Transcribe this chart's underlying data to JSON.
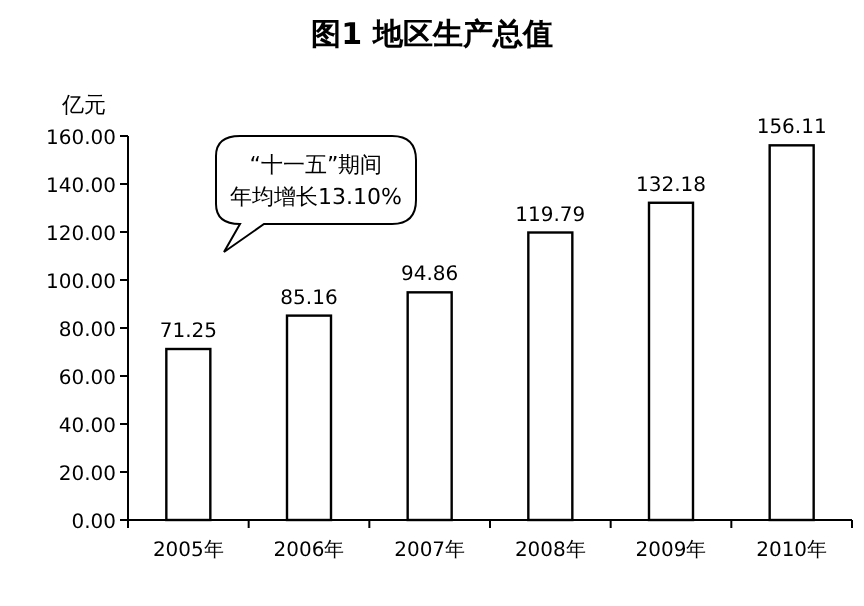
{
  "chart_data": {
    "type": "bar",
    "title": "图1  地区生产总值",
    "ylabel": "亿元",
    "categories": [
      "2005年",
      "2006年",
      "2007年",
      "2008年",
      "2009年",
      "2010年"
    ],
    "values": [
      71.25,
      85.16,
      94.86,
      119.79,
      132.18,
      156.11
    ],
    "color": "#ffffff",
    "ylim": [
      0,
      160
    ],
    "yticks": [
      {
        "value": 0,
        "label": "0.00"
      },
      {
        "value": 20,
        "label": "20.00"
      },
      {
        "value": 40,
        "label": "40.00"
      },
      {
        "value": 60,
        "label": "60.00"
      },
      {
        "value": 80,
        "label": "80.00"
      },
      {
        "value": 100,
        "label": "100.00"
      },
      {
        "value": 120,
        "label": "120.00"
      },
      {
        "value": 140,
        "label": "140.00"
      },
      {
        "value": 160,
        "label": "160.00"
      }
    ],
    "data_labels": true,
    "grid": false,
    "annotations": [
      "“十一五”期间",
      "年均增长13.10%"
    ]
  }
}
